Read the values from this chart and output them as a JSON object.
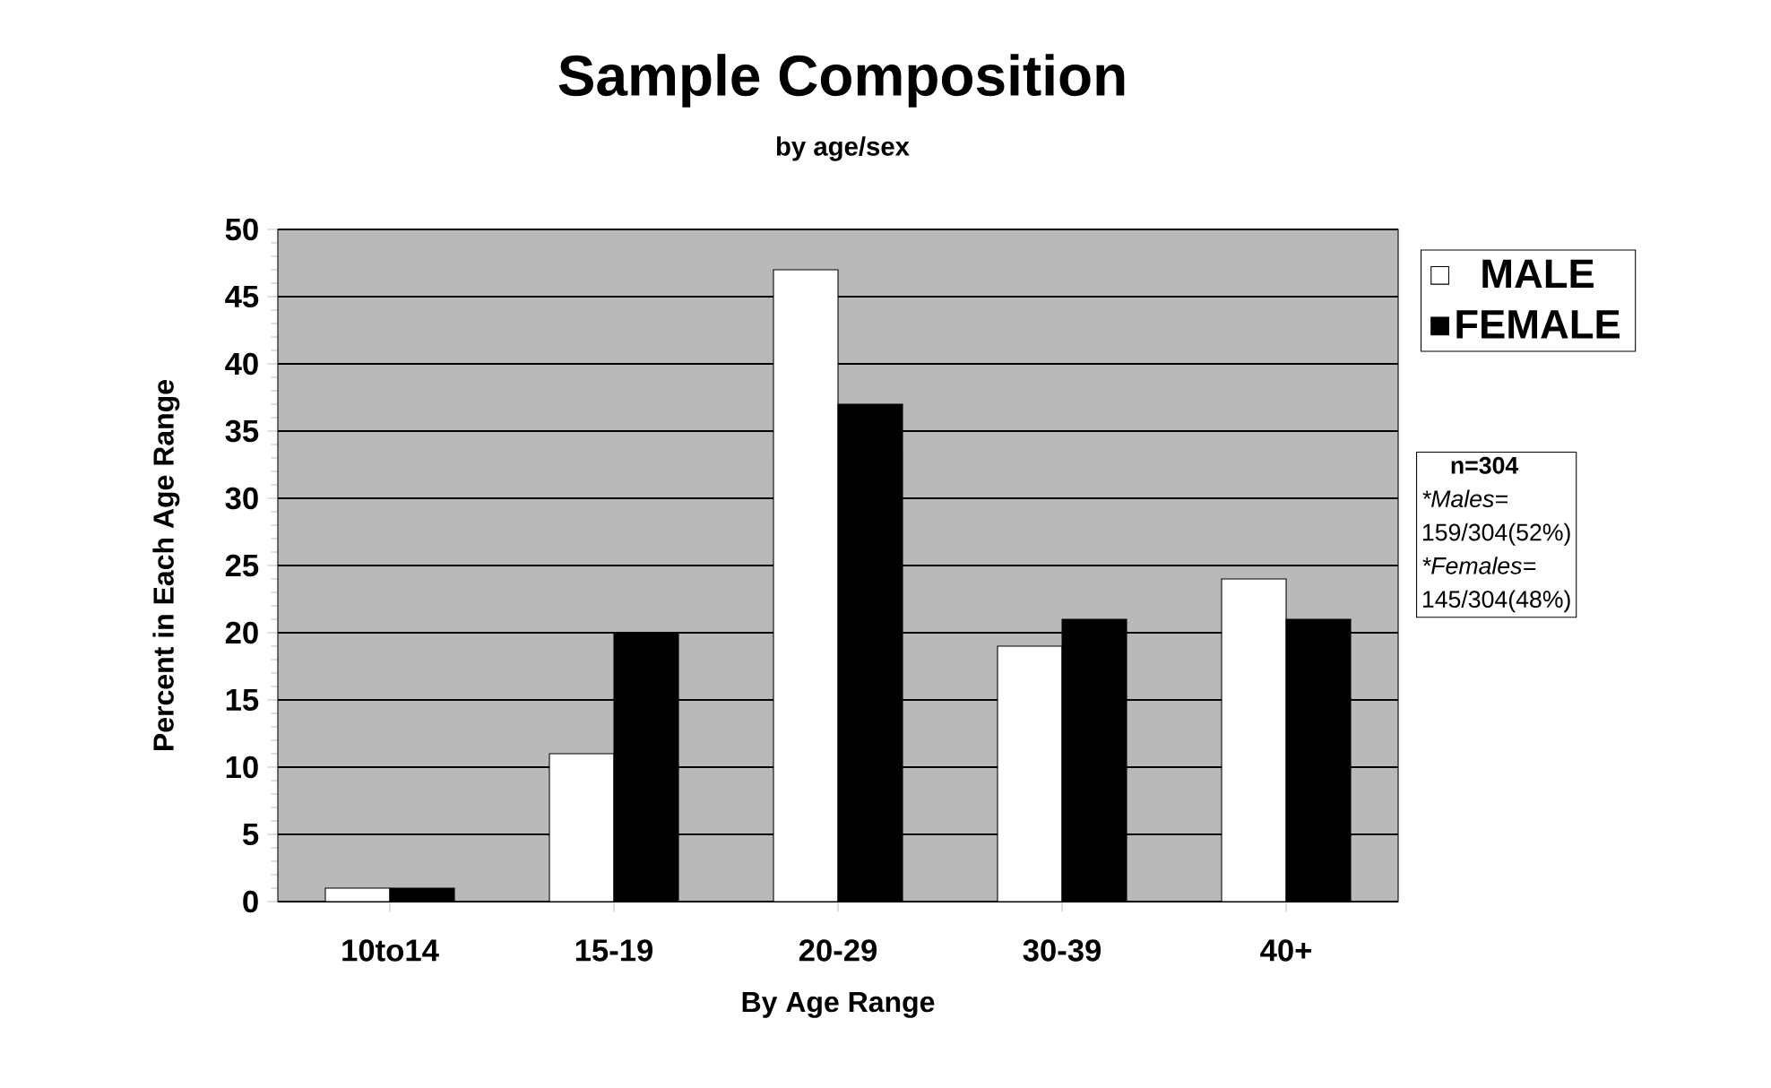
{
  "chart_data": {
    "type": "bar",
    "title": "Sample Composition",
    "subtitle": "by age/sex",
    "xlabel": "By Age Range",
    "ylabel": "Percent in Each Age Range",
    "categories": [
      "10to14",
      "15-19",
      "20-29",
      "30-39",
      "40+"
    ],
    "series": [
      {
        "name": "MALE",
        "color": "#ffffff",
        "values": [
          1,
          11,
          47,
          19,
          24
        ]
      },
      {
        "name": "FEMALE",
        "color": "#000000",
        "values": [
          1,
          20,
          37,
          21,
          21
        ]
      }
    ],
    "ylim": [
      0,
      50
    ],
    "yticks": [
      0,
      5,
      10,
      15,
      20,
      25,
      30,
      35,
      40,
      45,
      50
    ],
    "grid": "y",
    "legend": "right",
    "annotations": [
      "n=304",
      "*Males=",
      "159/304(52%)",
      "*Females=",
      "145/304(48%)"
    ]
  }
}
